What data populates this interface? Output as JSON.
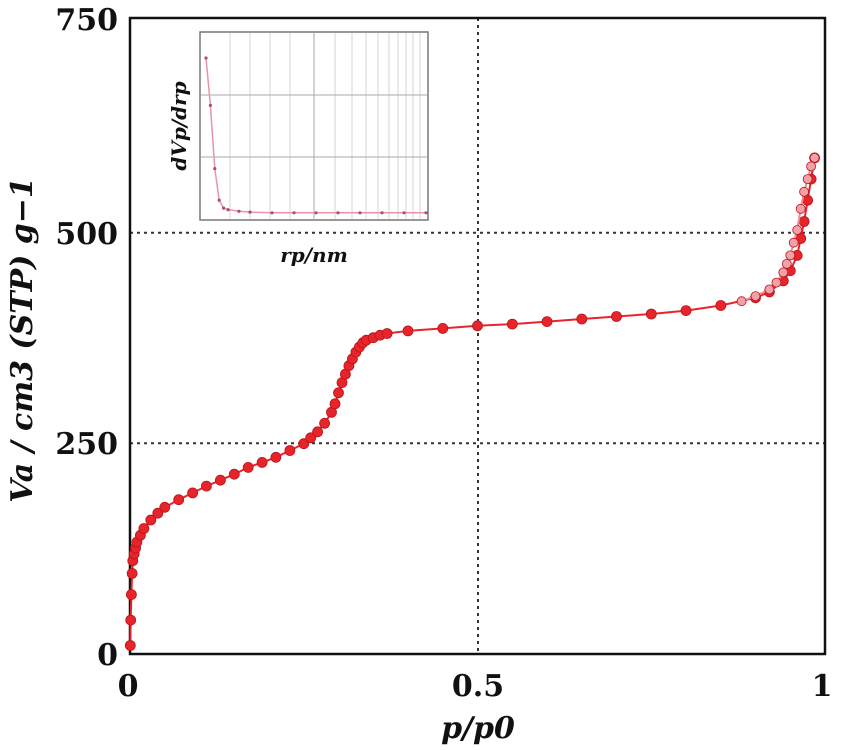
{
  "chart_data": [
    {
      "type": "scatter",
      "xlabel": "p/p0",
      "ylabel": "Va / cm3 (STP) g−1",
      "xlim": [
        0,
        1
      ],
      "ylim": [
        0,
        750
      ],
      "x_ticks": [
        "0",
        "0.5",
        "1"
      ],
      "y_ticks": [
        "0",
        "250",
        "500",
        "750"
      ],
      "grid": true,
      "marker_color": "#e8242b",
      "series": [
        {
          "x": [
            0.0005,
            0.001,
            0.002,
            0.003,
            0.004,
            0.006,
            0.008,
            0.01,
            0.015,
            0.02,
            0.03,
            0.04,
            0.05,
            0.07,
            0.09,
            0.11,
            0.13,
            0.15,
            0.17,
            0.19,
            0.21,
            0.23,
            0.25,
            0.26,
            0.27,
            0.28,
            0.29,
            0.295,
            0.3,
            0.305,
            0.31,
            0.315,
            0.32,
            0.325,
            0.33,
            0.335,
            0.34,
            0.35,
            0.36,
            0.37,
            0.4,
            0.45,
            0.5,
            0.55,
            0.6,
            0.65,
            0.7,
            0.75,
            0.8,
            0.85,
            0.9,
            0.92,
            0.94,
            0.95,
            0.96,
            0.965,
            0.97,
            0.975,
            0.98,
            0.985
          ],
          "y": [
            10,
            40,
            70,
            95,
            110,
            118,
            125,
            132,
            140,
            148,
            158,
            166,
            173,
            182,
            190,
            198,
            205,
            212,
            220,
            226,
            232,
            240,
            248,
            255,
            262,
            272,
            285,
            295,
            308,
            320,
            330,
            340,
            348,
            356,
            362,
            367,
            370,
            373,
            376,
            378,
            381,
            384,
            387,
            389,
            392,
            395,
            398,
            401,
            405,
            411,
            420,
            427,
            440,
            452,
            470,
            490,
            510,
            535,
            560,
            585
          ]
        },
        {
          "x": [
            0.985,
            0.98,
            0.975,
            0.97,
            0.965,
            0.96,
            0.955,
            0.95,
            0.945,
            0.94,
            0.93,
            0.92,
            0.9,
            0.88
          ],
          "y": [
            585,
            575,
            560,
            545,
            525,
            500,
            485,
            470,
            460,
            450,
            438,
            430,
            422,
            416
          ]
        }
      ]
    },
    {
      "type": "line",
      "xlabel": "rp/nm",
      "ylabel": "dVp/drp",
      "grid": true,
      "line_color": "#e597a6",
      "series": [
        {
          "x": [
            0,
            0.02,
            0.04,
            0.06,
            0.08,
            0.1,
            0.15,
            0.2,
            0.3,
            0.4,
            0.5,
            0.6,
            0.7,
            0.8,
            0.9,
            1.0
          ],
          "y": [
            1.0,
            0.7,
            0.3,
            0.1,
            0.05,
            0.04,
            0.03,
            0.025,
            0.02,
            0.02,
            0.02,
            0.02,
            0.02,
            0.02,
            0.02,
            0.02
          ]
        }
      ]
    }
  ]
}
